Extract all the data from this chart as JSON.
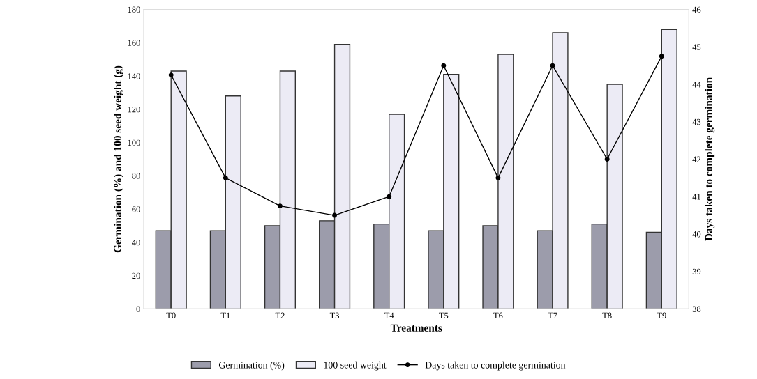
{
  "chart_data": {
    "type": "bar",
    "xlabel": "Treatments",
    "ylabel": "Germination (%) and 100 seed weight (g)",
    "y2label": "Days taken to complete germination",
    "categories": [
      "T0",
      "T1",
      "T2",
      "T3",
      "T4",
      "T5",
      "T6",
      "T7",
      "T8",
      "T9"
    ],
    "series": [
      {
        "name": "Germination (%)",
        "color": "#9c9cab",
        "values": [
          47,
          47,
          50,
          53,
          51,
          47,
          50,
          47,
          51,
          46
        ]
      },
      {
        "name": "100 seed weight",
        "color": "#ecebf5",
        "values": [
          143,
          128,
          143,
          159,
          117,
          141,
          153,
          166,
          135,
          168
        ]
      },
      {
        "name": "Days taken to complete germination",
        "type": "line",
        "axis": "y2",
        "color": "#000000",
        "marker": "circle",
        "values": [
          44.25,
          41.5,
          40.75,
          40.5,
          41.0,
          44.5,
          41.5,
          44.5,
          42.0,
          44.75
        ]
      }
    ],
    "ylim": [
      0,
      180
    ],
    "yticks": [
      0,
      20,
      40,
      60,
      80,
      100,
      120,
      140,
      160,
      180
    ],
    "y2lim": [
      38,
      46
    ],
    "y2ticks": [
      38,
      39,
      40,
      41,
      42,
      43,
      44,
      45,
      46
    ],
    "grid": false,
    "legend": "bottom"
  }
}
